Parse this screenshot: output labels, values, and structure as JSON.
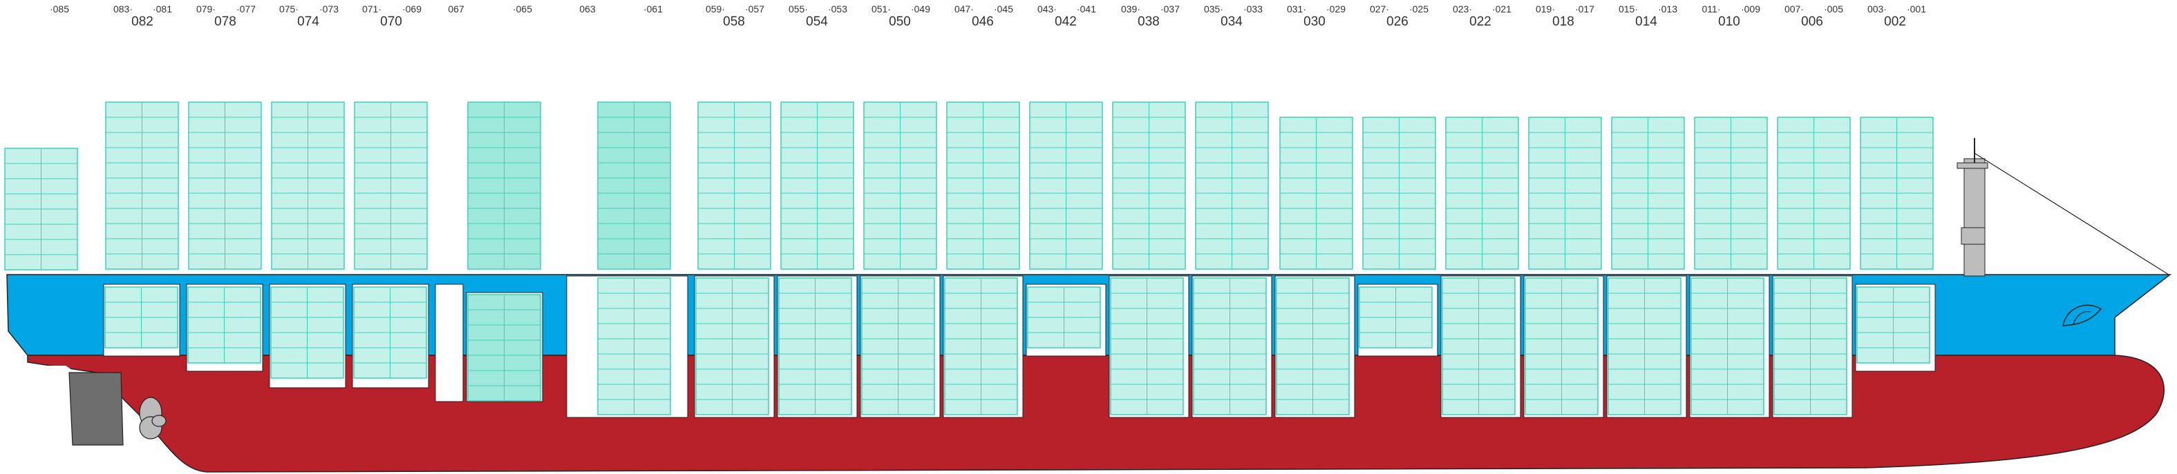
{
  "bay_labels": {
    "top_row": [
      "·085",
      "083·",
      "·081",
      "079·",
      "·077",
      "075·",
      "·073",
      "071·",
      "·069",
      "067",
      "·065",
      "063",
      "·061",
      "059·",
      "·057",
      "055·",
      "·053",
      "051·",
      "·049",
      "047·",
      "·045",
      "043·",
      "·041",
      "039·",
      "·037",
      "035·",
      "·033",
      "031·",
      "·029",
      "027·",
      "·025",
      "023·",
      "·021",
      "019·",
      "·017",
      "015·",
      "·013",
      "011·",
      "·009",
      "007·",
      "·005",
      "003·",
      "·001"
    ],
    "forty_foot_bays": [
      "082",
      "078",
      "074",
      "070",
      "058",
      "054",
      "050",
      "046",
      "042",
      "038",
      "034",
      "030",
      "026",
      "022",
      "018",
      "014",
      "010",
      "006",
      "002"
    ]
  },
  "colors": {
    "container_fill": "#c4f2eb",
    "container_fill_alt": "#9fe8dc",
    "container_stroke": "#3fd0b8",
    "hull_upper": "#00a5e6",
    "hull_lower": "#b8202a",
    "propeller": "#bbbbbb",
    "rudder": "#6e6e6e",
    "superstructure": "#bdbdbd"
  },
  "icons": [
    "propeller-icon",
    "rudder-icon",
    "mast-icon",
    "bulbous-bow-logo-icon"
  ]
}
